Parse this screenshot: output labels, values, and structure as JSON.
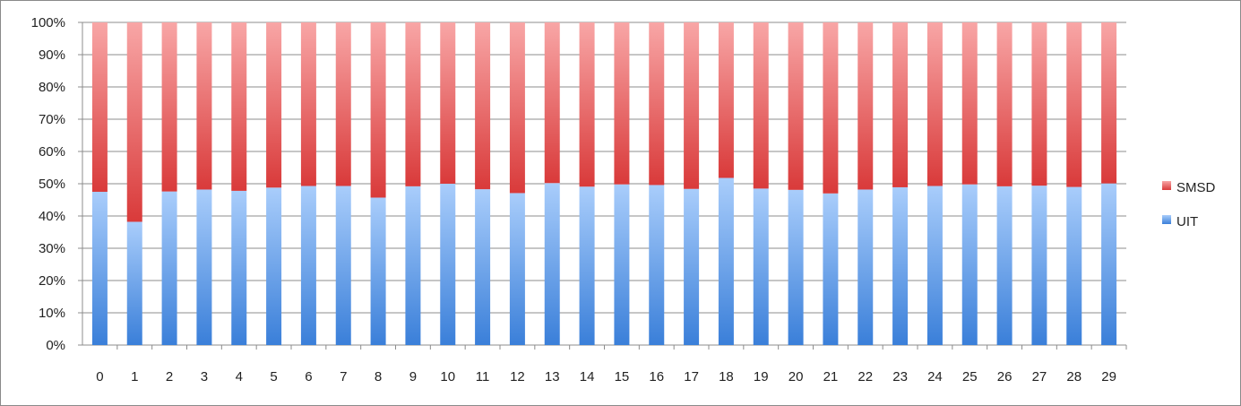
{
  "chart_data": {
    "type": "bar",
    "stacked": true,
    "percent_stacked": true,
    "categories": [
      "0",
      "1",
      "2",
      "3",
      "4",
      "5",
      "6",
      "7",
      "8",
      "9",
      "10",
      "11",
      "12",
      "13",
      "14",
      "15",
      "16",
      "17",
      "18",
      "19",
      "20",
      "21",
      "22",
      "23",
      "24",
      "25",
      "26",
      "27",
      "28",
      "29"
    ],
    "series": [
      {
        "name": "UIT",
        "color": "#5b9be8",
        "values": [
          47.5,
          38.2,
          47.6,
          48.2,
          47.8,
          48.8,
          49.3,
          49.3,
          45.7,
          49.2,
          50.0,
          48.3,
          47.1,
          50.2,
          49.1,
          49.8,
          49.6,
          48.4,
          51.8,
          48.5,
          48.1,
          47.0,
          48.2,
          48.9,
          49.3,
          49.8,
          49.2,
          49.4,
          49.0,
          50.1
        ]
      },
      {
        "name": "SMSD",
        "color": "#e05a5a",
        "values": [
          52.5,
          61.8,
          52.4,
          51.8,
          52.2,
          51.2,
          50.7,
          50.7,
          54.3,
          50.8,
          50.0,
          51.7,
          52.9,
          49.8,
          50.9,
          50.2,
          50.4,
          51.6,
          48.2,
          51.5,
          51.9,
          53.0,
          51.8,
          51.1,
          50.7,
          50.2,
          50.8,
          50.6,
          51.0,
          49.9
        ]
      }
    ],
    "y_ticks": [
      "0%",
      "10%",
      "20%",
      "30%",
      "40%",
      "50%",
      "60%",
      "70%",
      "80%",
      "90%",
      "100%"
    ],
    "ylim": [
      0,
      100
    ],
    "grid": true,
    "legend": {
      "placement": "right",
      "entries": [
        "SMSD",
        "UIT"
      ]
    },
    "title": "",
    "xlabel": "",
    "ylabel": ""
  }
}
